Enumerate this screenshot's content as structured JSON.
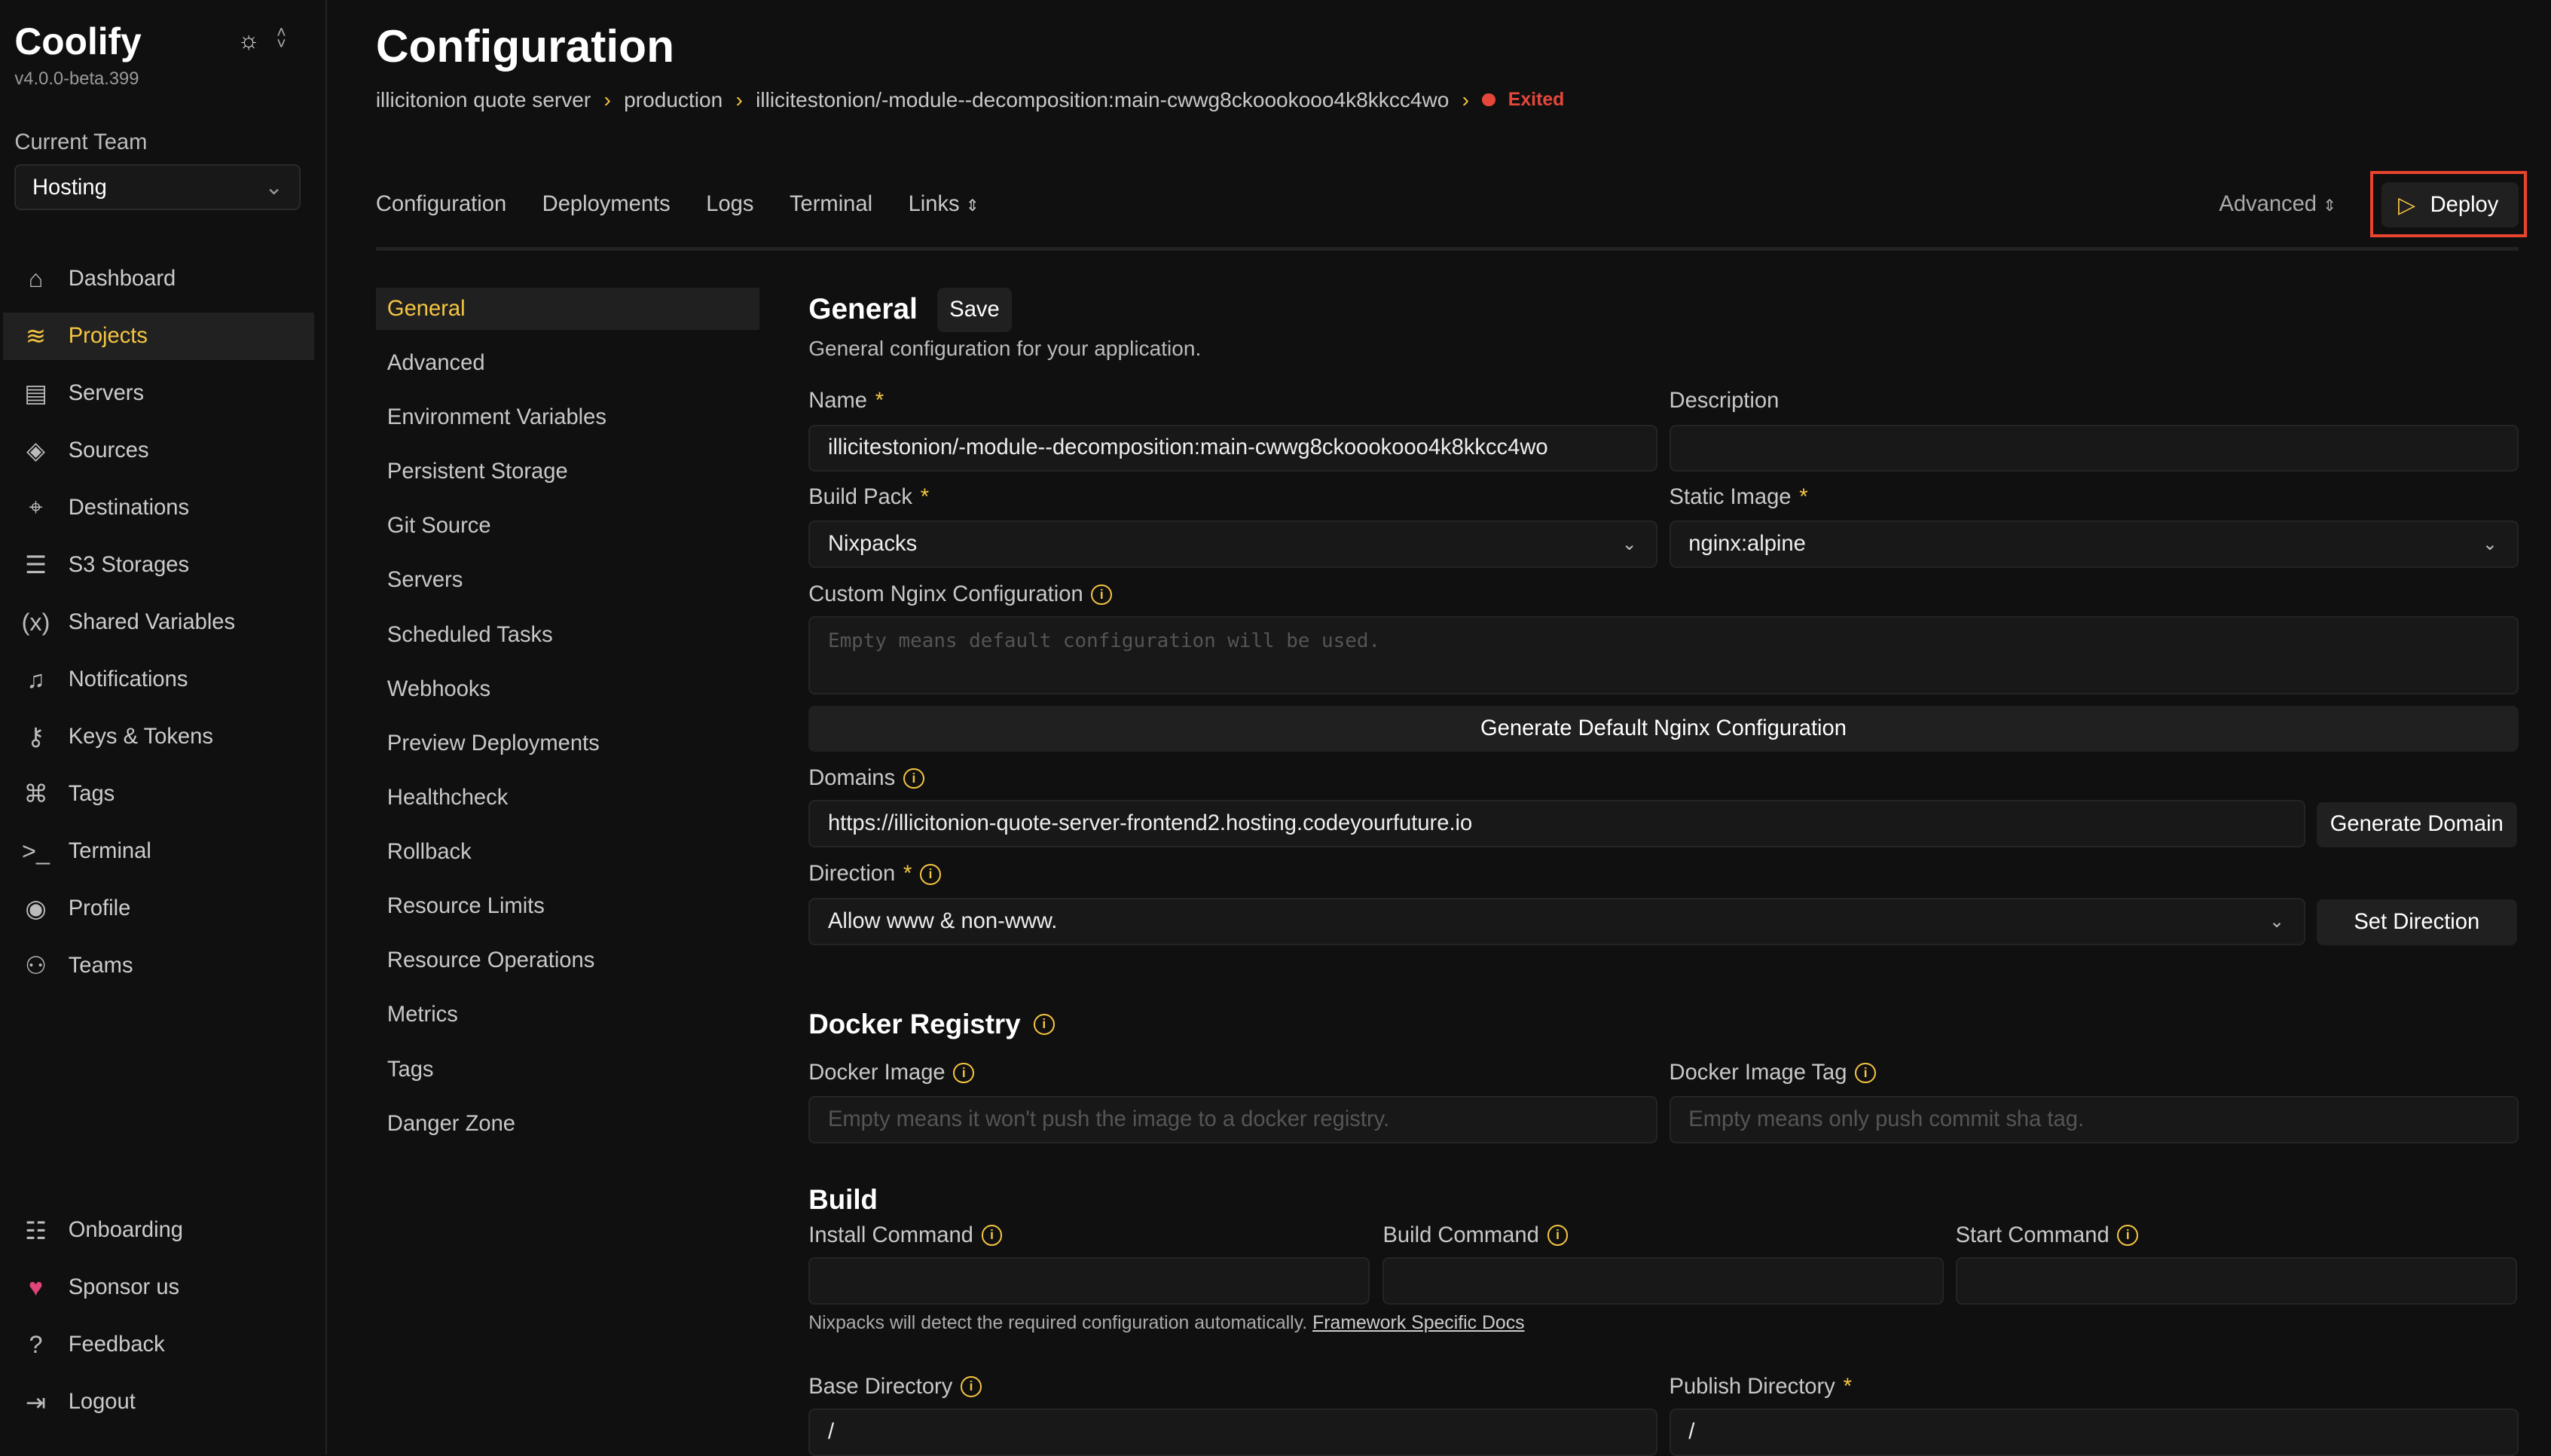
{
  "app": {
    "name": "Coolify",
    "version": "v4.0.0-beta.399"
  },
  "team": {
    "label": "Current Team",
    "value": "Hosting"
  },
  "nav": [
    {
      "label": "Dashboard",
      "icon": "home-icon",
      "glyph": "⌂"
    },
    {
      "label": "Projects",
      "icon": "layers-icon",
      "glyph": "≋",
      "active": true
    },
    {
      "label": "Servers",
      "icon": "server-icon",
      "glyph": "▤"
    },
    {
      "label": "Sources",
      "icon": "git-icon",
      "glyph": "◈"
    },
    {
      "label": "Destinations",
      "icon": "map-icon",
      "glyph": "⌖"
    },
    {
      "label": "S3 Storages",
      "icon": "database-icon",
      "glyph": "☰"
    },
    {
      "label": "Shared Variables",
      "icon": "variable-icon",
      "glyph": "(x)"
    },
    {
      "label": "Notifications",
      "icon": "bell-icon",
      "glyph": "♫"
    },
    {
      "label": "Keys & Tokens",
      "icon": "key-icon",
      "glyph": "⚷"
    },
    {
      "label": "Tags",
      "icon": "tag-icon",
      "glyph": "⌘"
    },
    {
      "label": "Terminal",
      "icon": "terminal-icon",
      "glyph": ">_"
    },
    {
      "label": "Profile",
      "icon": "user-icon",
      "glyph": "◉"
    },
    {
      "label": "Teams",
      "icon": "users-icon",
      "glyph": "⚇"
    }
  ],
  "nav_bottom": [
    {
      "label": "Onboarding",
      "icon": "checklist-icon",
      "glyph": "☷"
    },
    {
      "label": "Sponsor us",
      "icon": "heart-icon",
      "glyph": "♥"
    },
    {
      "label": "Feedback",
      "icon": "help-icon",
      "glyph": "?"
    },
    {
      "label": "Logout",
      "icon": "logout-icon",
      "glyph": "⇥"
    }
  ],
  "page": {
    "title": "Configuration"
  },
  "breadcrumb": {
    "items": [
      "illicitonion quote server",
      "production",
      "illicitestonion/-module--decomposition:main-cwwg8ckoookooo4k8kkcc4wo"
    ],
    "status": "Exited"
  },
  "tabs": [
    "Configuration",
    "Deployments",
    "Logs",
    "Terminal",
    "Links"
  ],
  "actions": {
    "advanced": "Advanced",
    "deploy": "Deploy"
  },
  "subnav": [
    "General",
    "Advanced",
    "Environment Variables",
    "Persistent Storage",
    "Git Source",
    "Servers",
    "Scheduled Tasks",
    "Webhooks",
    "Preview Deployments",
    "Healthcheck",
    "Rollback",
    "Resource Limits",
    "Resource Operations",
    "Metrics",
    "Tags",
    "Danger Zone"
  ],
  "general": {
    "title": "General",
    "save": "Save",
    "subtitle": "General configuration for your application.",
    "name_label": "Name",
    "name_value": "illicitestonion/-module--decomposition:main-cwwg8ckoookooo4k8kkcc4wo",
    "description_label": "Description",
    "description_value": "",
    "buildpack_label": "Build Pack",
    "buildpack_value": "Nixpacks",
    "static_image_label": "Static Image",
    "static_image_value": "nginx:alpine",
    "nginx_label": "Custom Nginx Configuration",
    "nginx_placeholder": "Empty means default configuration will be used.",
    "gen_nginx": "Generate Default Nginx Configuration",
    "domains_label": "Domains",
    "domains_value": "https://illicitonion-quote-server-frontend2.hosting.codeyourfuture.io",
    "gen_domain": "Generate Domain",
    "direction_label": "Direction",
    "direction_value": "Allow www & non-www.",
    "set_direction": "Set Direction"
  },
  "docker": {
    "title": "Docker Registry",
    "image_label": "Docker Image",
    "image_placeholder": "Empty means it won't push the image to a docker registry.",
    "tag_label": "Docker Image Tag",
    "tag_placeholder": "Empty means only push commit sha tag."
  },
  "build": {
    "title": "Build",
    "install_label": "Install Command",
    "build_label": "Build Command",
    "start_label": "Start Command",
    "hint": "Nixpacks will detect the required configuration automatically.",
    "hint_link": "Framework Specific Docs",
    "base_label": "Base Directory",
    "base_value": "/",
    "publish_label": "Publish Directory",
    "publish_value": "/"
  },
  "colors": {
    "accent": "#f5c542",
    "error": "#e5483a",
    "highlight": "#e8442e"
  }
}
